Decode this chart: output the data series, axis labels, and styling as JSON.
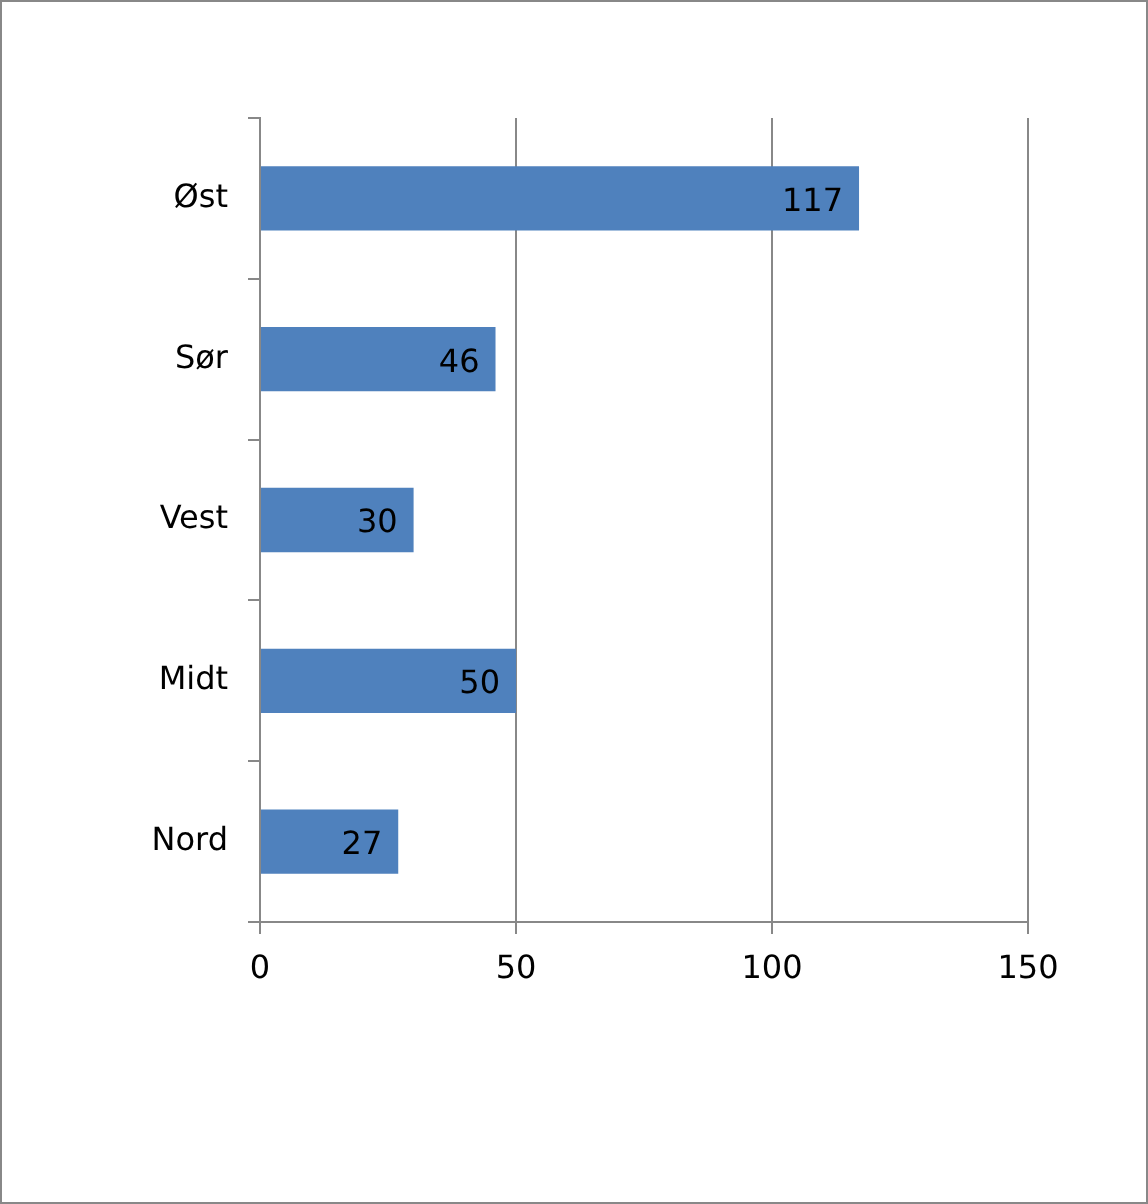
{
  "chart_data": {
    "type": "bar",
    "orientation": "horizontal",
    "categories": [
      "Øst",
      "Sør",
      "Vest",
      "Midt",
      "Nord"
    ],
    "series": [
      {
        "color": "#4f81bd",
        "values": [
          117,
          46,
          30,
          50,
          27
        ]
      }
    ],
    "xlim": [
      0,
      150
    ],
    "xticks": [
      0,
      50,
      100,
      150
    ],
    "grid": "x",
    "legend": false,
    "data_labels": true
  }
}
